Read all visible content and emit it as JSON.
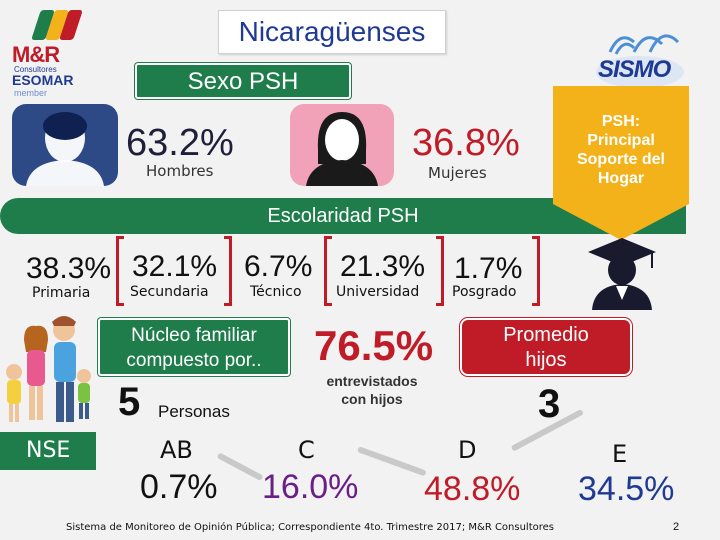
{
  "header": {
    "title": "Nicaragüenses",
    "logo_left": {
      "name": "M&R",
      "sub": "Consultores",
      "org": "ESOMAR",
      "member": "member"
    },
    "logo_right": {
      "name": "SISMO"
    }
  },
  "sexo": {
    "title": "Sexo PSH",
    "hombres": {
      "pct": "63.2%",
      "label": "Hombres"
    },
    "mujeres": {
      "pct": "36.8%",
      "label": "Mujeres"
    }
  },
  "banner": {
    "text_lines": [
      "PSH:",
      "Principal",
      "Soporte del",
      "Hogar"
    ],
    "color": "#f3b21a"
  },
  "escolaridad": {
    "title": "Escolaridad PSH",
    "items": [
      {
        "pct": "38.3%",
        "label": "Primaria"
      },
      {
        "pct": "32.1%",
        "label": "Secundaria"
      },
      {
        "pct": "6.7%",
        "label": "Técnico"
      },
      {
        "pct": "21.3%",
        "label": "Universidad"
      },
      {
        "pct": "1.7%",
        "label": "Posgrado"
      }
    ]
  },
  "nucleo": {
    "label": "Núcleo familiar compuesto por..",
    "value": "5",
    "unit": "Personas"
  },
  "hijos": {
    "pct": "76.5%",
    "label_lines": [
      "entrevistados",
      "con hijos"
    ]
  },
  "promedio": {
    "label_lines": [
      "Promedio",
      "hijos"
    ],
    "value": "3"
  },
  "nse": {
    "label": "NSE",
    "items": [
      {
        "cat": "AB",
        "pct": "0.7%"
      },
      {
        "cat": "C",
        "pct": "16.0%"
      },
      {
        "cat": "D",
        "pct": "48.8%"
      },
      {
        "cat": "E",
        "pct": "34.5%"
      }
    ]
  },
  "footer": {
    "text": "Sistema de Monitoreo de Opinión Pública; Correspondiente 4to. Trimestre 2017; M&R Consultores",
    "page": "2"
  },
  "colors": {
    "green": "#1e7d4b",
    "red": "#c01c28",
    "navy": "#1f3a93",
    "purple": "#6a1e87"
  }
}
